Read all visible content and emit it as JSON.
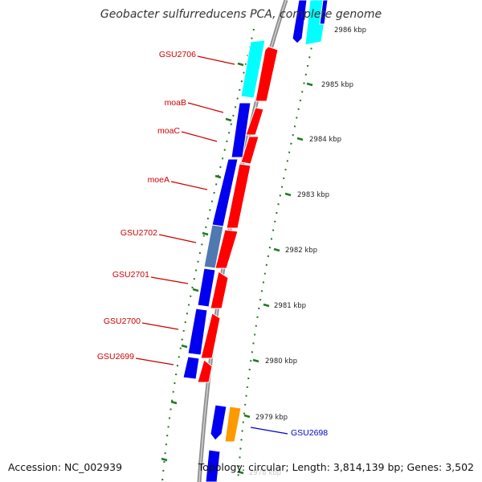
{
  "title": "Geobacter sulfurreducens PCA, complete genome",
  "accession": "Accession: NC_002939",
  "topology": "Topology: circular; Length: 3,814,139 bp; Genes: 3,502",
  "colors": {
    "background": "#ffffff",
    "backbone": "#8c8c8c",
    "gene_blue": "#0000ee",
    "gene_red": "#ff0000",
    "gene_cyan": "#00ffff",
    "gene_orange": "#ff9900",
    "gene_grey_blue": "#4f79b0",
    "label_red": "#cc0000",
    "label_blue": "#0000cc",
    "tick_green": "#1f7a1f"
  },
  "scale_ticks": [
    "2986 kbp",
    "2985 kbp",
    "2984 kbp",
    "2983 kbp",
    "2982 kbp",
    "2981 kbp",
    "2980 kbp",
    "2979 kbp",
    "2978 kbp"
  ],
  "gene_labels": [
    {
      "name": "GSU2706",
      "color": "red"
    },
    {
      "name": "moaB",
      "color": "red"
    },
    {
      "name": "moaC",
      "color": "red"
    },
    {
      "name": "moeA",
      "color": "red"
    },
    {
      "name": "GSU2702",
      "color": "red"
    },
    {
      "name": "GSU2701",
      "color": "red"
    },
    {
      "name": "GSU2700",
      "color": "red"
    },
    {
      "name": "GSU2699",
      "color": "red"
    },
    {
      "name": "GSU2698",
      "color": "blue"
    }
  ]
}
